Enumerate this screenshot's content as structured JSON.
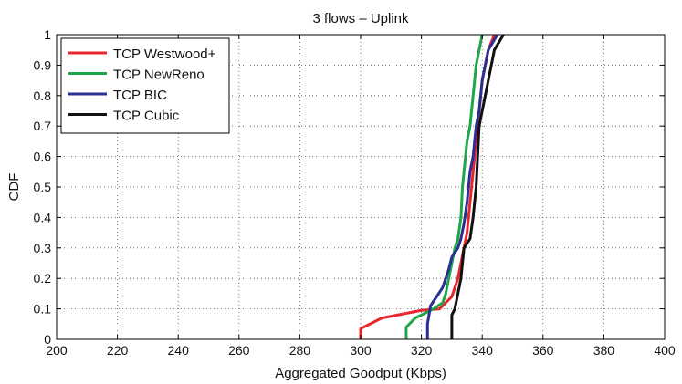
{
  "chart_data": {
    "type": "line",
    "title": "3 flows – Uplink",
    "xlabel": "Aggregated Goodput (Kbps)",
    "ylabel": "CDF",
    "xlim": [
      200,
      400
    ],
    "ylim": [
      0,
      1
    ],
    "xticks": [
      200,
      220,
      240,
      260,
      280,
      300,
      320,
      340,
      360,
      380,
      400
    ],
    "yticks": [
      0,
      0.1,
      0.2,
      0.3,
      0.4,
      0.5,
      0.6,
      0.7,
      0.8,
      0.9,
      1
    ],
    "grid": true,
    "legend_position": "top-left",
    "series": [
      {
        "name": "TCP Westwood+",
        "color": "#e8262e",
        "points": [
          [
            300,
            0
          ],
          [
            300,
            0.035
          ],
          [
            307,
            0.07
          ],
          [
            320,
            0.095
          ],
          [
            326,
            0.1
          ],
          [
            328,
            0.12
          ],
          [
            330,
            0.14
          ],
          [
            331,
            0.17
          ],
          [
            332,
            0.2
          ],
          [
            333,
            0.25
          ],
          [
            334,
            0.3
          ],
          [
            335,
            0.35
          ],
          [
            335.5,
            0.4
          ],
          [
            336,
            0.45
          ],
          [
            336.5,
            0.5
          ],
          [
            337,
            0.55
          ],
          [
            337.5,
            0.6
          ],
          [
            338,
            0.65
          ],
          [
            338.5,
            0.7
          ],
          [
            339,
            0.75
          ],
          [
            339.5,
            0.8
          ],
          [
            340,
            0.85
          ],
          [
            341,
            0.9
          ],
          [
            342,
            0.95
          ],
          [
            344,
            1
          ]
        ]
      },
      {
        "name": "TCP NewReno",
        "color": "#1ea64a",
        "points": [
          [
            315,
            0
          ],
          [
            315,
            0.04
          ],
          [
            318,
            0.07
          ],
          [
            324,
            0.1
          ],
          [
            327,
            0.12
          ],
          [
            328,
            0.15
          ],
          [
            329,
            0.2
          ],
          [
            330,
            0.25
          ],
          [
            331,
            0.3
          ],
          [
            332,
            0.33
          ],
          [
            333,
            0.4
          ],
          [
            333.5,
            0.5
          ],
          [
            334,
            0.55
          ],
          [
            334.5,
            0.6
          ],
          [
            335,
            0.65
          ],
          [
            336,
            0.7
          ],
          [
            336.5,
            0.75
          ],
          [
            337,
            0.8
          ],
          [
            337.5,
            0.85
          ],
          [
            338,
            0.9
          ],
          [
            339,
            0.95
          ],
          [
            340,
            1
          ]
        ]
      },
      {
        "name": "TCP BIC",
        "color": "#2b2f94",
        "points": [
          [
            322,
            0
          ],
          [
            322,
            0.05
          ],
          [
            323,
            0.11
          ],
          [
            325,
            0.14
          ],
          [
            327,
            0.17
          ],
          [
            328,
            0.2
          ],
          [
            329,
            0.23
          ],
          [
            330,
            0.27
          ],
          [
            332,
            0.3
          ],
          [
            333,
            0.33
          ],
          [
            334,
            0.38
          ],
          [
            335,
            0.45
          ],
          [
            335.5,
            0.5
          ],
          [
            336,
            0.55
          ],
          [
            337,
            0.6
          ],
          [
            338,
            0.7
          ],
          [
            339,
            0.75
          ],
          [
            339.5,
            0.8
          ],
          [
            340,
            0.85
          ],
          [
            341,
            0.9
          ],
          [
            342,
            0.95
          ],
          [
            345,
            1
          ]
        ]
      },
      {
        "name": "TCP Cubic",
        "color": "#111111",
        "points": [
          [
            330,
            0
          ],
          [
            330,
            0.05
          ],
          [
            330,
            0.08
          ],
          [
            331,
            0.1
          ],
          [
            332,
            0.15
          ],
          [
            333,
            0.2
          ],
          [
            334,
            0.3
          ],
          [
            336,
            0.33
          ],
          [
            337,
            0.4
          ],
          [
            338,
            0.5
          ],
          [
            338.5,
            0.6
          ],
          [
            339,
            0.7
          ],
          [
            340,
            0.75
          ],
          [
            341,
            0.8
          ],
          [
            342,
            0.85
          ],
          [
            343,
            0.9
          ],
          [
            344,
            0.95
          ],
          [
            347,
            1
          ]
        ]
      }
    ]
  }
}
